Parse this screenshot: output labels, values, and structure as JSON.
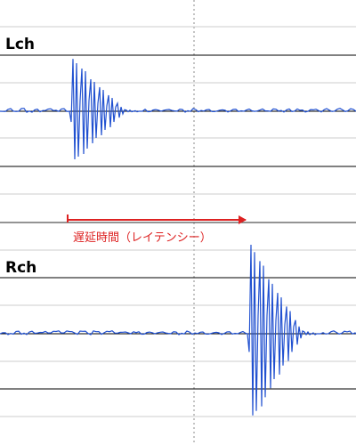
{
  "chart_data": {
    "type": "line",
    "title": "",
    "annotation": {
      "text": "遅延時間（レイテンシー）",
      "from": 75,
      "to": 283
    },
    "colors": {
      "signal": "#2050d0",
      "annotation": "#dd2222",
      "grid": "#cccccc",
      "major": "#000000"
    },
    "grid": true,
    "xlim": [
      0,
      400
    ],
    "ylim": [
      -1,
      1
    ],
    "series": [
      {
        "name": "Lch",
        "x": [
          0,
          78,
          80,
          82,
          84,
          86,
          88,
          90,
          92,
          94,
          96,
          98,
          100,
          102,
          104,
          106,
          108,
          110,
          112,
          114,
          116,
          118,
          120,
          122,
          124,
          126,
          128,
          130,
          132,
          134,
          136,
          138,
          140,
          142,
          144,
          146,
          148,
          150,
          152,
          154,
          156,
          158,
          160,
          400
        ],
        "y": [
          0,
          0,
          -0.2,
          0.98,
          -0.9,
          0.9,
          -0.85,
          0.2,
          0.8,
          -0.8,
          0.75,
          -0.7,
          0.2,
          0.6,
          -0.6,
          0.55,
          -0.5,
          0.15,
          0.45,
          -0.45,
          0.4,
          -0.35,
          0.1,
          0.3,
          -0.3,
          0.25,
          -0.2,
          0.08,
          0.15,
          -0.12,
          0.08,
          -0.05,
          0.03,
          0.02,
          -0.01,
          0.02,
          -0.01,
          0.0,
          0.01,
          -0.01,
          0.0,
          0.0,
          0.0,
          0.0
        ]
      },
      {
        "name": "Rch",
        "x": [
          0,
          278,
          280,
          282,
          284,
          286,
          288,
          290,
          292,
          294,
          296,
          298,
          300,
          302,
          304,
          306,
          308,
          310,
          312,
          314,
          316,
          318,
          320,
          322,
          324,
          326,
          328,
          330,
          332,
          334,
          336,
          338,
          340,
          342,
          344,
          346,
          348,
          350,
          352,
          354,
          356,
          358,
          360,
          400
        ],
        "y": [
          0,
          0,
          -0.2,
          0.98,
          -0.9,
          0.9,
          -0.85,
          0.2,
          0.8,
          -0.8,
          0.75,
          -0.7,
          0.2,
          0.6,
          -0.6,
          0.55,
          -0.5,
          0.15,
          0.45,
          -0.45,
          0.4,
          -0.35,
          0.1,
          0.3,
          -0.3,
          0.25,
          -0.2,
          0.08,
          0.15,
          -0.12,
          0.08,
          -0.05,
          0.03,
          0.02,
          -0.01,
          0.02,
          -0.01,
          0.0,
          0.01,
          -0.01,
          0.0,
          0.0,
          0.0,
          0.0
        ]
      }
    ]
  }
}
